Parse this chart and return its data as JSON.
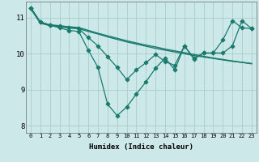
{
  "xlabel": "Humidex (Indice chaleur)",
  "background_color": "#cce8e8",
  "grid_color": "#aacccc",
  "line_color": "#1a7a6e",
  "xlim": [
    -0.5,
    23.5
  ],
  "ylim": [
    7.8,
    11.45
  ],
  "yticks": [
    8,
    9,
    10,
    11
  ],
  "xticks": [
    0,
    1,
    2,
    3,
    4,
    5,
    6,
    7,
    8,
    9,
    10,
    11,
    12,
    13,
    14,
    15,
    16,
    17,
    18,
    19,
    20,
    21,
    22,
    23
  ],
  "line1": [
    11.28,
    10.88,
    10.8,
    10.78,
    10.75,
    10.73,
    10.65,
    10.57,
    10.5,
    10.43,
    10.36,
    10.3,
    10.24,
    10.19,
    10.13,
    10.08,
    10.03,
    9.98,
    9.93,
    9.88,
    9.84,
    9.8,
    9.76,
    9.72
  ],
  "line2": [
    11.25,
    10.85,
    10.78,
    10.75,
    10.72,
    10.7,
    10.62,
    10.55,
    10.47,
    10.4,
    10.33,
    10.27,
    10.21,
    10.15,
    10.1,
    10.05,
    10.0,
    9.95,
    9.91,
    9.87,
    9.83,
    9.79,
    9.76,
    9.73
  ],
  "line3": [
    11.28,
    10.88,
    10.8,
    10.78,
    10.72,
    10.7,
    10.45,
    10.22,
    9.92,
    9.62,
    9.28,
    9.55,
    9.75,
    9.98,
    9.78,
    9.68,
    10.22,
    9.88,
    10.02,
    10.02,
    10.38,
    10.92,
    10.72,
    10.7
  ],
  "line4": [
    11.28,
    10.88,
    10.8,
    10.72,
    10.65,
    10.62,
    10.1,
    9.62,
    8.6,
    8.28,
    8.52,
    8.88,
    9.22,
    9.6,
    9.88,
    9.55,
    10.22,
    9.85,
    10.02,
    10.02,
    10.02,
    10.22,
    10.92,
    10.7
  ]
}
